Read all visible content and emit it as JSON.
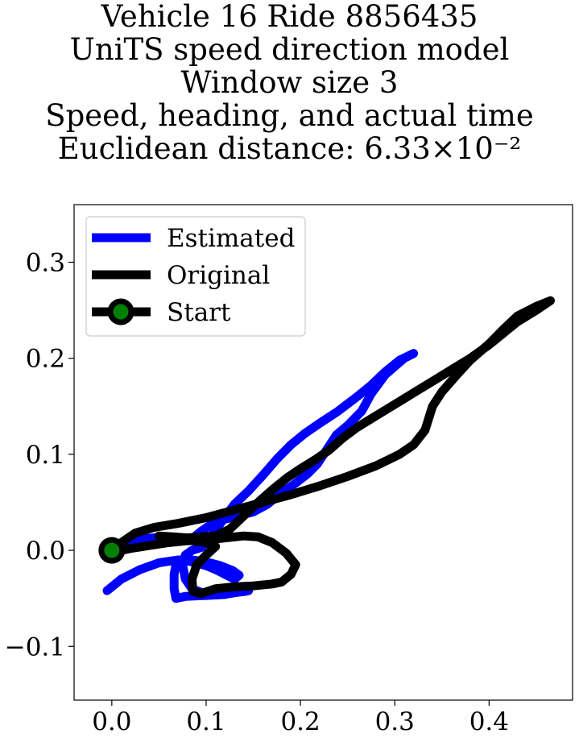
{
  "chart_data": {
    "type": "line",
    "title_lines": [
      "Vehicle 16 Ride 8856435",
      "UniTS speed direction model",
      "Window size 3",
      "Speed, heading, and actual time",
      "Euclidean distance: 6.33×10⁻²"
    ],
    "xlabel": "",
    "ylabel": "",
    "xlim": [
      -0.04,
      0.4885
    ],
    "ylim": [
      -0.156,
      0.36
    ],
    "xticks": [
      0.0,
      0.1,
      0.2,
      0.3,
      0.4
    ],
    "xtick_labels": [
      "0.0",
      "0.1",
      "0.2",
      "0.3",
      "0.4"
    ],
    "yticks": [
      -0.1,
      0.0,
      0.1,
      0.2,
      0.3
    ],
    "ytick_labels": [
      "−0.1",
      "0.0",
      "0.1",
      "0.2",
      "0.3"
    ],
    "grid": false,
    "legend_position": "upper-left",
    "legend": [
      "Estimated",
      "Original",
      "Start"
    ],
    "series": [
      {
        "name": "Estimated",
        "color": "#0000ff",
        "points": [
          [
            -0.005,
            -0.042
          ],
          [
            0.01,
            -0.03
          ],
          [
            0.03,
            -0.02
          ],
          [
            0.05,
            -0.013
          ],
          [
            0.07,
            -0.01
          ],
          [
            0.085,
            -0.01
          ],
          [
            0.1,
            -0.012
          ],
          [
            0.115,
            -0.016
          ],
          [
            0.128,
            -0.021
          ],
          [
            0.135,
            -0.026
          ],
          [
            0.13,
            -0.03
          ],
          [
            0.12,
            -0.025
          ],
          [
            0.11,
            -0.02
          ],
          [
            0.1,
            -0.016
          ],
          [
            0.09,
            -0.013
          ],
          [
            0.075,
            -0.01
          ],
          [
            0.068,
            -0.015
          ],
          [
            0.066,
            -0.025
          ],
          [
            0.066,
            -0.04
          ],
          [
            0.068,
            -0.05
          ],
          [
            0.078,
            -0.048
          ],
          [
            0.1,
            -0.047
          ],
          [
            0.12,
            -0.046
          ],
          [
            0.13,
            -0.044
          ],
          [
            0.14,
            -0.043
          ],
          [
            0.145,
            -0.042
          ],
          [
            0.125,
            -0.045
          ],
          [
            0.1,
            -0.046
          ],
          [
            0.085,
            -0.04
          ],
          [
            0.078,
            -0.03
          ],
          [
            0.075,
            -0.015
          ],
          [
            0.078,
            -0.005
          ],
          [
            0.085,
            0.0
          ],
          [
            0.095,
            0.003
          ],
          [
            0.1,
            0.008
          ],
          [
            0.108,
            0.018
          ],
          [
            0.118,
            0.032
          ],
          [
            0.13,
            0.048
          ],
          [
            0.145,
            0.062
          ],
          [
            0.16,
            0.078
          ],
          [
            0.175,
            0.095
          ],
          [
            0.19,
            0.11
          ],
          [
            0.205,
            0.122
          ],
          [
            0.22,
            0.132
          ],
          [
            0.24,
            0.145
          ],
          [
            0.26,
            0.16
          ],
          [
            0.275,
            0.172
          ],
          [
            0.29,
            0.186
          ],
          [
            0.305,
            0.198
          ],
          [
            0.32,
            0.205
          ],
          [
            0.31,
            0.2
          ],
          [
            0.29,
            0.183
          ],
          [
            0.275,
            0.163
          ],
          [
            0.265,
            0.145
          ],
          [
            0.25,
            0.13
          ],
          [
            0.238,
            0.12
          ],
          [
            0.228,
            0.105
          ],
          [
            0.218,
            0.09
          ],
          [
            0.208,
            0.08
          ],
          [
            0.195,
            0.07
          ],
          [
            0.18,
            0.06
          ],
          [
            0.165,
            0.048
          ],
          [
            0.15,
            0.04
          ],
          [
            0.13,
            0.035
          ],
          [
            0.11,
            0.03
          ],
          [
            0.095,
            0.02
          ],
          [
            0.085,
            0.012
          ],
          [
            0.075,
            0.01
          ],
          [
            0.06,
            0.01
          ],
          [
            0.045,
            0.013
          ],
          [
            0.03,
            0.012
          ],
          [
            0.015,
            0.006
          ],
          [
            0.0,
            0.0
          ]
        ]
      },
      {
        "name": "Original",
        "color": "#000000",
        "points": [
          [
            0.0,
            0.0
          ],
          [
            0.01,
            0.008
          ],
          [
            0.025,
            0.018
          ],
          [
            0.045,
            0.024
          ],
          [
            0.07,
            0.028
          ],
          [
            0.1,
            0.034
          ],
          [
            0.13,
            0.042
          ],
          [
            0.16,
            0.05
          ],
          [
            0.19,
            0.058
          ],
          [
            0.22,
            0.067
          ],
          [
            0.25,
            0.077
          ],
          [
            0.28,
            0.088
          ],
          [
            0.305,
            0.1
          ],
          [
            0.32,
            0.11
          ],
          [
            0.332,
            0.125
          ],
          [
            0.34,
            0.15
          ],
          [
            0.35,
            0.165
          ],
          [
            0.365,
            0.182
          ],
          [
            0.38,
            0.198
          ],
          [
            0.4,
            0.215
          ],
          [
            0.415,
            0.23
          ],
          [
            0.43,
            0.244
          ],
          [
            0.45,
            0.254
          ],
          [
            0.465,
            0.26
          ],
          [
            0.45,
            0.25
          ],
          [
            0.43,
            0.238
          ],
          [
            0.415,
            0.226
          ],
          [
            0.4,
            0.214
          ],
          [
            0.38,
            0.2
          ],
          [
            0.36,
            0.188
          ],
          [
            0.34,
            0.176
          ],
          [
            0.32,
            0.164
          ],
          [
            0.3,
            0.152
          ],
          [
            0.28,
            0.14
          ],
          [
            0.26,
            0.128
          ],
          [
            0.245,
            0.117
          ],
          [
            0.23,
            0.104
          ],
          [
            0.215,
            0.094
          ],
          [
            0.2,
            0.085
          ],
          [
            0.185,
            0.075
          ],
          [
            0.17,
            0.063
          ],
          [
            0.155,
            0.05
          ],
          [
            0.14,
            0.036
          ],
          [
            0.125,
            0.022
          ],
          [
            0.11,
            0.015
          ],
          [
            0.095,
            0.014
          ],
          [
            0.08,
            0.013
          ],
          [
            0.065,
            0.014
          ],
          [
            0.05,
            0.015
          ],
          [
            0.065,
            0.012
          ],
          [
            0.085,
            0.01
          ],
          [
            0.1,
            0.008
          ],
          [
            0.11,
            0.004
          ],
          [
            0.1,
            -0.005
          ],
          [
            0.09,
            -0.015
          ],
          [
            0.085,
            -0.03
          ],
          [
            0.086,
            -0.043
          ],
          [
            0.095,
            -0.045
          ],
          [
            0.11,
            -0.04
          ],
          [
            0.13,
            -0.038
          ],
          [
            0.15,
            -0.037
          ],
          [
            0.17,
            -0.035
          ],
          [
            0.18,
            -0.033
          ],
          [
            0.19,
            -0.025
          ],
          [
            0.195,
            -0.015
          ],
          [
            0.185,
            -0.003
          ],
          [
            0.17,
            0.008
          ],
          [
            0.155,
            0.014
          ],
          [
            0.14,
            0.015
          ],
          [
            0.12,
            0.013
          ],
          [
            0.1,
            0.011
          ],
          [
            0.08,
            0.01
          ],
          [
            0.06,
            0.008
          ],
          [
            0.04,
            0.005
          ],
          [
            0.02,
            0.002
          ],
          [
            0.01,
            0.0
          ],
          [
            0.0,
            0.0
          ]
        ]
      }
    ],
    "start_marker": {
      "label": "Start",
      "x": 0.0,
      "y": 0.0,
      "face_color": "#008000",
      "edge_color": "#000000"
    }
  }
}
